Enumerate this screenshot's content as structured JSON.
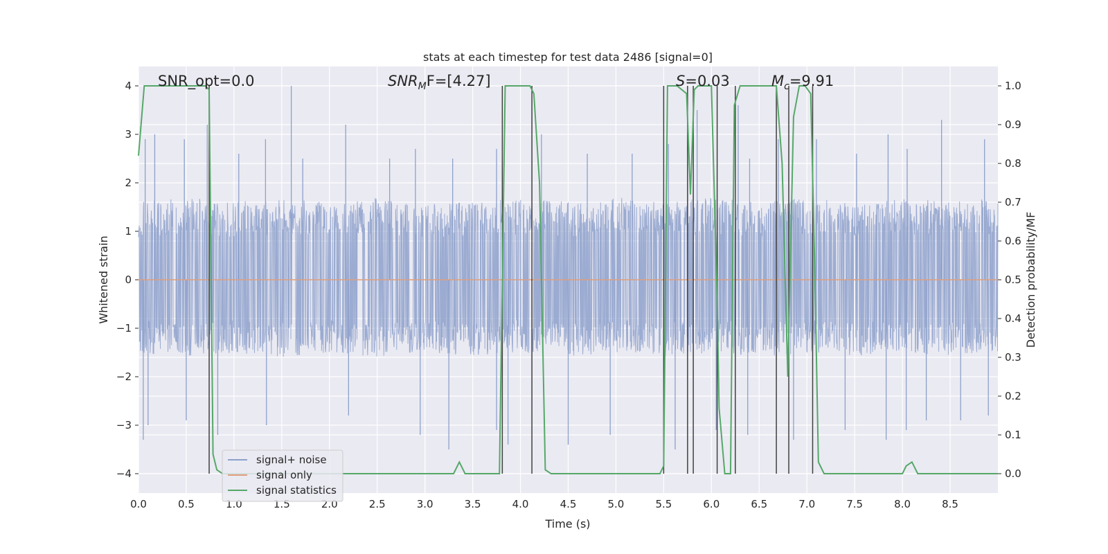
{
  "chart_data": {
    "type": "line",
    "title": "stats at each timestep for test data 2486 [signal=0]",
    "xlabel": "Time (s)",
    "ylabel": "Whitened strain",
    "ylabel_right": "Detection probability/MF",
    "xlim": [
      0.0,
      9.0
    ],
    "ylim": [
      -4.4,
      4.4
    ],
    "ylim_right": [
      -0.05,
      1.05
    ],
    "x_ticks": [
      "0.0",
      "0.5",
      "1.0",
      "1.5",
      "2.0",
      "2.5",
      "3.0",
      "3.5",
      "4.0",
      "4.5",
      "5.0",
      "5.5",
      "6.0",
      "6.5",
      "7.0",
      "7.5",
      "8.0",
      "8.5"
    ],
    "y_ticks": [
      "−4",
      "−3",
      "−2",
      "−1",
      "0",
      "1",
      "2",
      "3",
      "4"
    ],
    "y_ticks_right": [
      "0.0",
      "0.1",
      "0.2",
      "0.3",
      "0.4",
      "0.5",
      "0.6",
      "0.7",
      "0.8",
      "0.9",
      "1.0"
    ],
    "grid": true,
    "legend_position": "lower-left",
    "annotations": {
      "snr_opt": "SNR_opt=0.0",
      "snr_mf_base": "SNR",
      "snr_mf_sub": "M",
      "snr_mf_tail": "F=[4.27]",
      "s_italic": "S",
      "s_value": "=0.03",
      "mc_base": "M",
      "mc_sub": "c",
      "mc_value": "=9.91"
    },
    "series": [
      {
        "name": "signal+ noise",
        "color": "#8da0cb",
        "description_axis": "left",
        "envelope": {
          "x": [
            0.0,
            0.5,
            1.0,
            1.5,
            2.0,
            2.5,
            3.0,
            3.5,
            4.0,
            4.5,
            5.0,
            5.5,
            6.0,
            6.5,
            7.0,
            7.5,
            8.0,
            8.5,
            9.0
          ],
          "upper": [
            1.6,
            1.7,
            1.6,
            1.7,
            1.6,
            1.7,
            1.6,
            1.6,
            1.7,
            1.6,
            1.7,
            1.6,
            1.7,
            1.6,
            1.7,
            1.6,
            1.7,
            1.6,
            1.7
          ],
          "lower": [
            -1.5,
            -1.6,
            -1.5,
            -1.6,
            -1.5,
            -1.6,
            -1.5,
            -1.6,
            -1.5,
            -1.6,
            -1.5,
            -1.6,
            -1.5,
            -1.6,
            -1.5,
            -1.6,
            -1.5,
            -1.6,
            -1.5
          ]
        },
        "peaks": [
          [
            0.07,
            2.9
          ],
          [
            0.17,
            3.0
          ],
          [
            0.48,
            2.9
          ],
          [
            0.72,
            3.2
          ],
          [
            1.05,
            2.6
          ],
          [
            1.33,
            2.9
          ],
          [
            1.6,
            4.0
          ],
          [
            1.72,
            2.5
          ],
          [
            2.17,
            3.2
          ],
          [
            2.63,
            2.5
          ],
          [
            2.9,
            2.7
          ],
          [
            3.29,
            2.5
          ],
          [
            3.75,
            2.7
          ],
          [
            4.22,
            3.0
          ],
          [
            4.7,
            2.6
          ],
          [
            5.17,
            2.6
          ],
          [
            5.55,
            2.8
          ],
          [
            5.85,
            3.5
          ],
          [
            6.28,
            3.6
          ],
          [
            6.4,
            2.5
          ],
          [
            6.7,
            2.9
          ],
          [
            7.1,
            2.9
          ],
          [
            7.52,
            2.6
          ],
          [
            7.85,
            3.0
          ],
          [
            8.05,
            2.7
          ],
          [
            8.41,
            3.3
          ],
          [
            8.86,
            2.9
          ],
          [
            0.05,
            -3.3
          ],
          [
            0.1,
            -3.0
          ],
          [
            0.5,
            -2.9
          ],
          [
            0.83,
            -3.2
          ],
          [
            1.34,
            -3.0
          ],
          [
            2.2,
            -2.8
          ],
          [
            2.95,
            -3.2
          ],
          [
            3.25,
            -3.5
          ],
          [
            3.75,
            -3.1
          ],
          [
            3.87,
            -3.4
          ],
          [
            4.5,
            -3.4
          ],
          [
            4.94,
            -3.2
          ],
          [
            5.62,
            -3.5
          ],
          [
            6.05,
            -3.1
          ],
          [
            6.38,
            -3.2
          ],
          [
            6.86,
            -3.3
          ],
          [
            7.4,
            -3.1
          ],
          [
            7.83,
            -3.3
          ],
          [
            8.04,
            -3.1
          ],
          [
            8.25,
            -2.9
          ],
          [
            8.61,
            -2.9
          ],
          [
            8.9,
            -2.8
          ]
        ]
      },
      {
        "name": "signal only",
        "color": "#dd9e7c",
        "axis": "left",
        "x": [
          0.0,
          9.0
        ],
        "y": [
          0.0,
          0.0
        ]
      },
      {
        "name": "signal statistics",
        "color": "#55a868",
        "axis": "right",
        "x": [
          0.0,
          0.06,
          0.12,
          0.7,
          0.74,
          0.78,
          0.82,
          0.88,
          1.0,
          3.3,
          3.36,
          3.42,
          3.52,
          3.78,
          3.84,
          3.9,
          4.1,
          4.14,
          4.2,
          4.26,
          4.32,
          5.46,
          5.5,
          5.54,
          5.64,
          5.74,
          5.78,
          5.82,
          5.86,
          5.92,
          6.0,
          6.06,
          6.08,
          6.14,
          6.2,
          6.24,
          6.3,
          6.38,
          6.46,
          6.54,
          6.68,
          6.74,
          6.8,
          6.86,
          6.92,
          6.98,
          7.04,
          7.08,
          7.12,
          7.18,
          7.24,
          8.0,
          8.04,
          8.1,
          8.16,
          8.2,
          9.0
        ],
        "y": [
          0.82,
          1.0,
          1.0,
          1.0,
          0.99,
          0.05,
          0.01,
          0.0,
          0.0,
          0.0,
          0.03,
          0.0,
          0.0,
          0.0,
          1.0,
          1.0,
          1.0,
          0.98,
          0.75,
          0.01,
          0.0,
          0.0,
          0.02,
          1.0,
          1.0,
          0.98,
          0.72,
          0.99,
          1.0,
          1.0,
          1.0,
          0.45,
          0.17,
          0.0,
          0.0,
          0.95,
          1.0,
          1.0,
          1.0,
          1.0,
          1.0,
          0.8,
          0.25,
          0.92,
          1.0,
          1.0,
          0.98,
          0.55,
          0.03,
          0.0,
          0.0,
          0.0,
          0.02,
          0.03,
          0.0,
          0.0,
          0.0
        ]
      }
    ],
    "vertical_markers": {
      "color": "#404040",
      "x": [
        0.74,
        3.81,
        4.12,
        5.5,
        5.75,
        5.81,
        6.06,
        6.25,
        6.68,
        6.81,
        7.06
      ],
      "y_range_right": [
        0.0,
        1.0
      ]
    }
  }
}
